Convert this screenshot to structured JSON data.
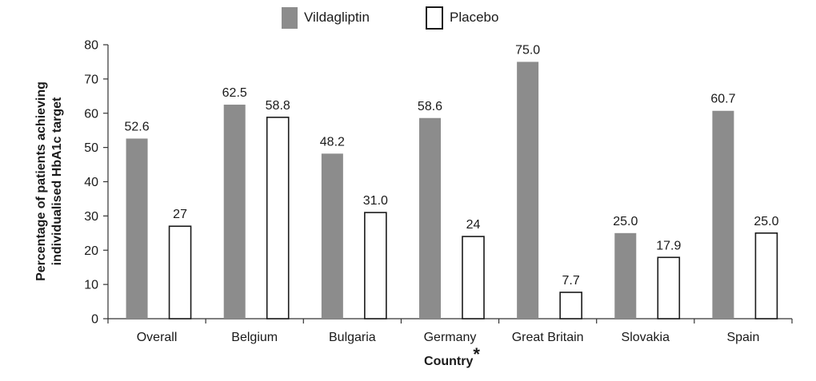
{
  "chart_data": {
    "type": "bar",
    "title": "",
    "xlabel": "Country",
    "xlabel_marker": "*",
    "ylabel_lines": [
      "Percentage of patients achieving",
      "individualised HbA1c target"
    ],
    "ylim": [
      0,
      80
    ],
    "yticks": [
      0,
      10,
      20,
      30,
      40,
      50,
      60,
      70,
      80
    ],
    "grid": false,
    "legend_position": "top-center",
    "categories": [
      "Overall",
      "Belgium",
      "Bulgaria",
      "Germany",
      "Great Britain",
      "Slovakia",
      "Spain"
    ],
    "series": [
      {
        "name": "Vildagliptin",
        "color": "#8c8c8c",
        "values": [
          52.6,
          62.5,
          48.2,
          58.6,
          75.0,
          25.0,
          60.7
        ],
        "labels": [
          "52.6",
          "62.5",
          "48.2",
          "58.6",
          "75.0",
          "25.0",
          "60.7"
        ]
      },
      {
        "name": "Placebo",
        "color": "#ffffff",
        "values": [
          27,
          58.8,
          31.0,
          24,
          7.7,
          17.9,
          25.0
        ],
        "labels": [
          "27",
          "58.8",
          "31.0",
          "24",
          "7.7",
          "17.9",
          "25.0"
        ]
      }
    ]
  }
}
